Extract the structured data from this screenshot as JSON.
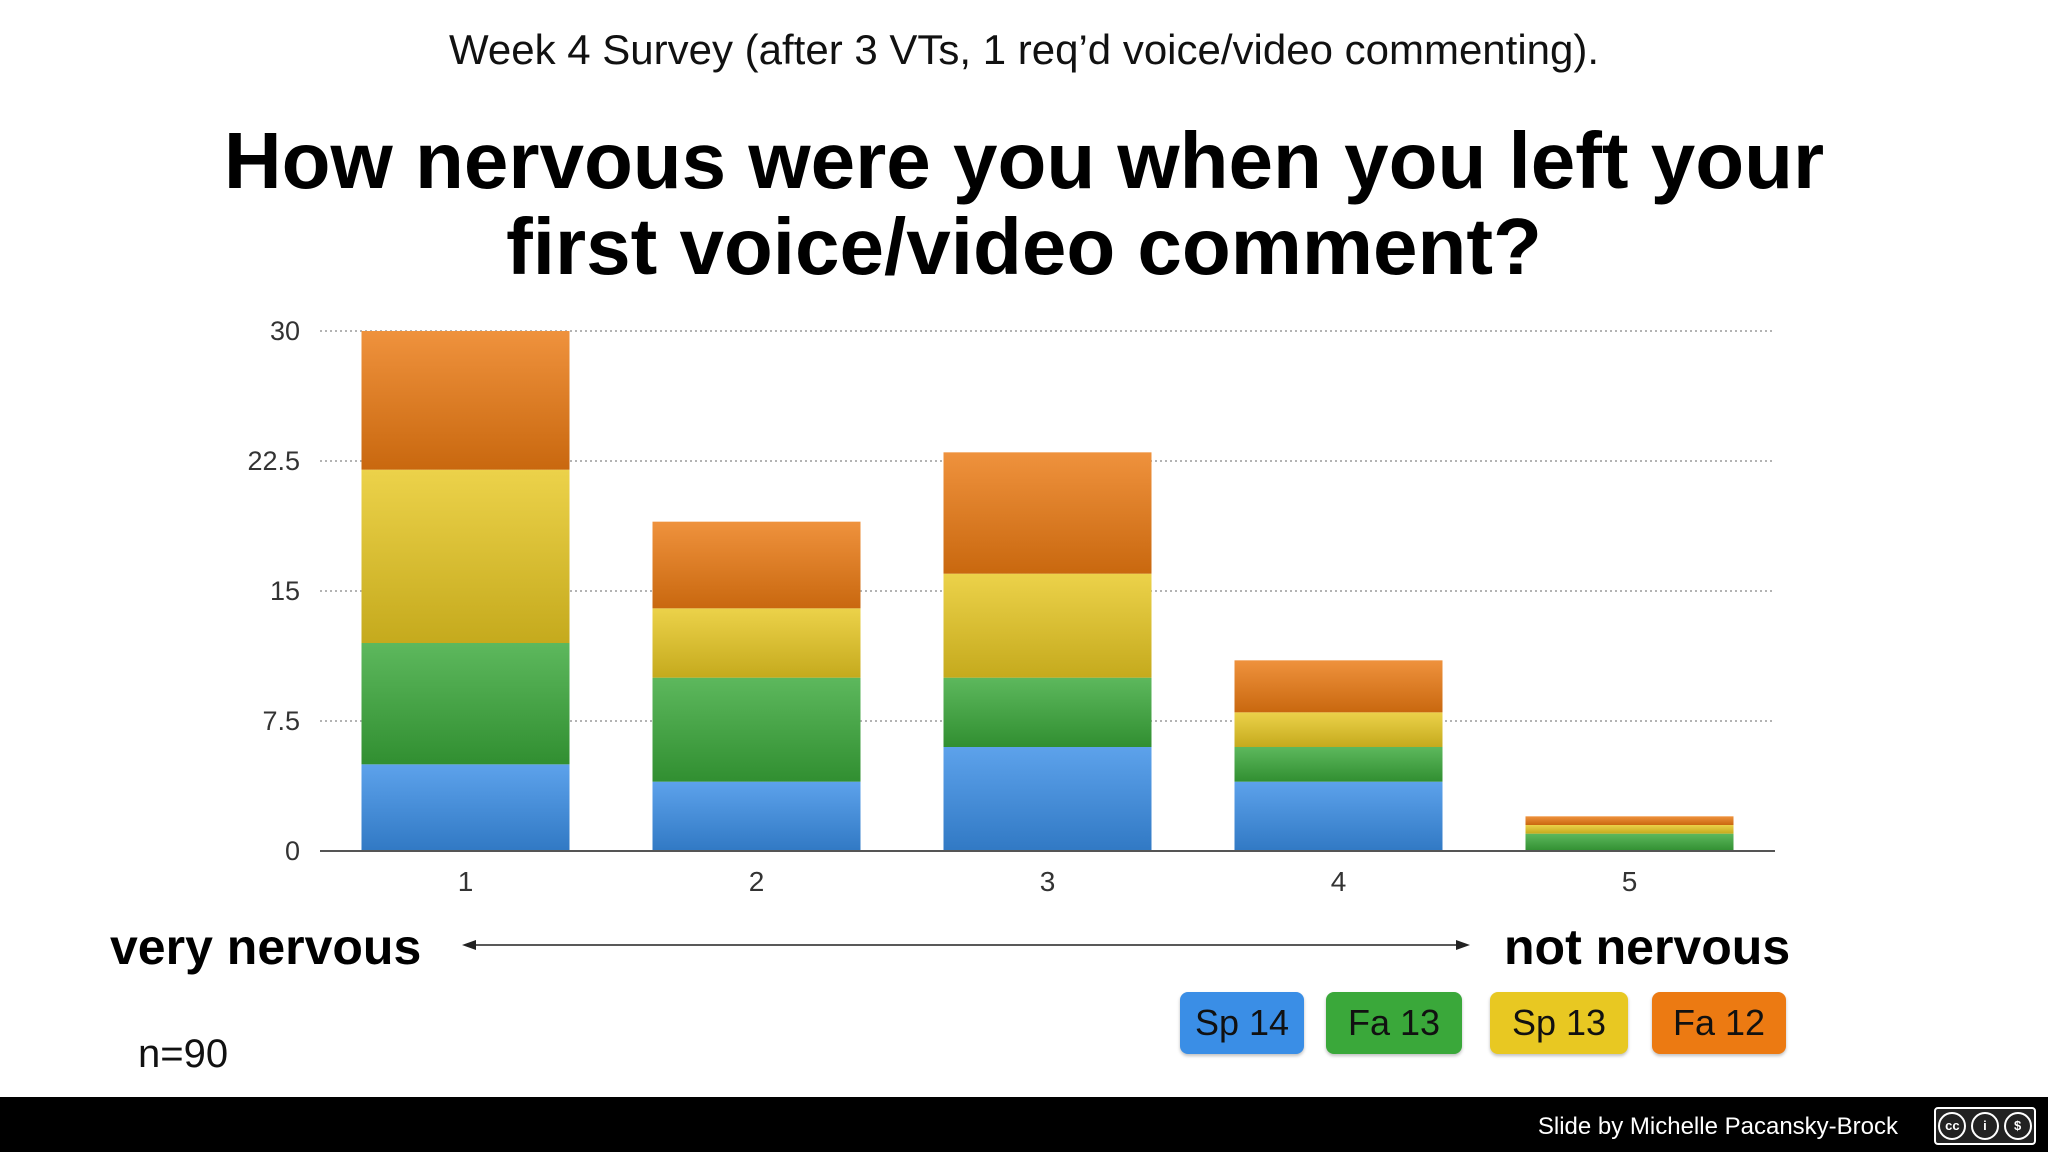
{
  "subtitle": "Week 4 Survey (after 3 VTs, 1 req’d voice/video commenting).",
  "question_line1": "How nervous were you when you left your",
  "question_line2": "first voice/video comment?",
  "scale": {
    "left_label": "very nervous",
    "right_label": "not nervous"
  },
  "n_label": "n=90",
  "footer": {
    "credit": "Slide by Michelle Pacansky-Brock",
    "license_icons": [
      "cc-icon",
      "by-icon",
      "nc-icon"
    ]
  },
  "chart_data": {
    "type": "bar",
    "stacked": true,
    "title": "How nervous were you when you left your first voice/video comment?",
    "categories": [
      "1",
      "2",
      "3",
      "4",
      "5"
    ],
    "series": [
      {
        "name": "Sp 14",
        "color": "#3a8ee6",
        "values": [
          5,
          4,
          6,
          4,
          0
        ]
      },
      {
        "name": "Fa 13",
        "color": "#3aa83a",
        "values": [
          7,
          6,
          4,
          2,
          1
        ]
      },
      {
        "name": "Sp 13",
        "color": "#e8c822",
        "values": [
          10,
          4,
          6,
          2,
          0.5
        ]
      },
      {
        "name": "Fa 12",
        "color": "#ec7a12",
        "values": [
          8,
          5,
          7,
          3,
          0.5
        ]
      }
    ],
    "ylim": [
      0,
      30
    ],
    "yticks": [
      "0",
      "7.5",
      "15",
      "22.5",
      "30"
    ],
    "grid": "horizontal dotted",
    "legend_position": "bottom-right"
  }
}
